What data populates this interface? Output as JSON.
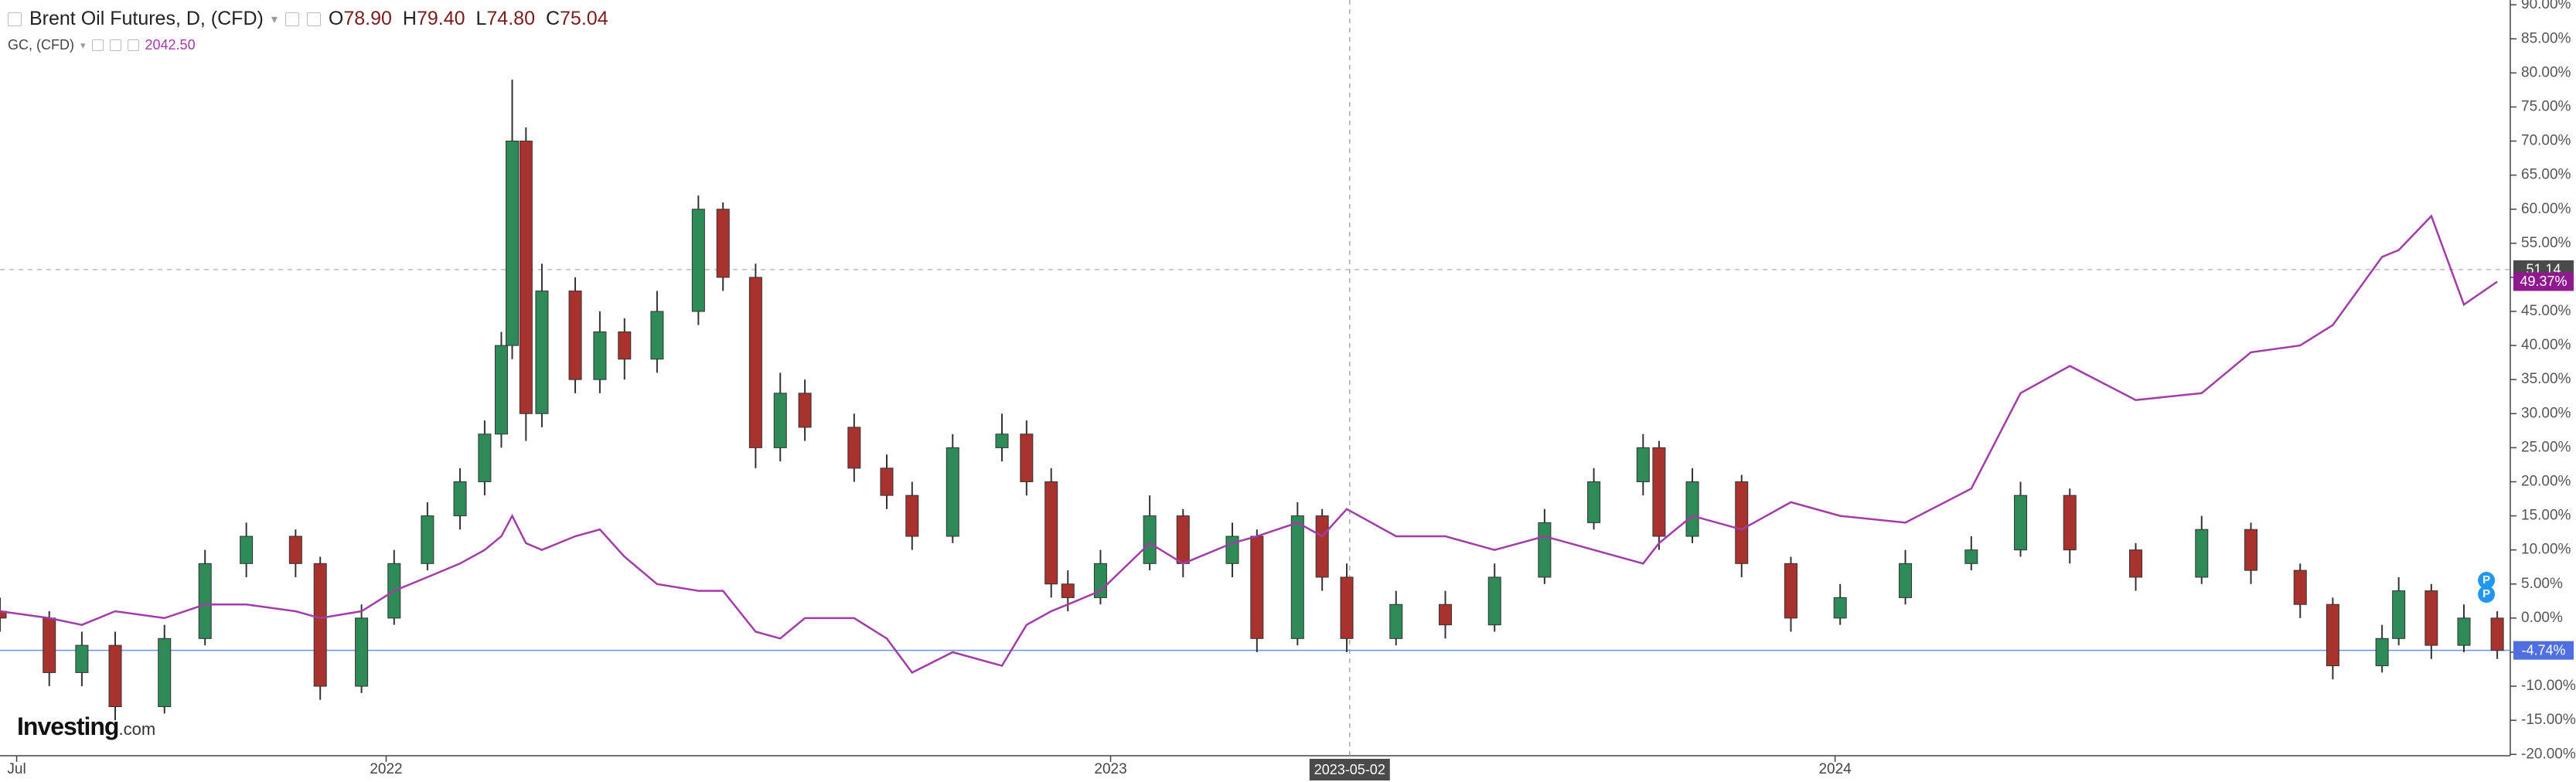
{
  "chart_data": {
    "type": "candlestick",
    "title": "Brent Oil Futures, D, (CFD)",
    "ohlc": [
      {
        "key": "O",
        "value": {
          "value": 78.9,
          "label": "78.90"
        }
      },
      {
        "key": "H",
        "value": {
          "value": 79.4,
          "label": "79.40"
        }
      },
      {
        "key": "L",
        "value": {
          "value": 74.8,
          "label": "74.80"
        }
      },
      {
        "key": "C",
        "value": 75.04
      }
    ],
    "overlay": {
      "name": "GC, (CFD)",
      "value": {
        "value": 2042.5,
        "label": "2042.50"
      }
    },
    "logo": {
      "name": "Investing",
      "suffix": ".com"
    },
    "events": [
      "P",
      "P"
    ],
    "xlim": [
      2021.467,
      2024.932
    ],
    "xticks": [
      {
        "value": 2021.49,
        "label": "Jul"
      },
      2022,
      2023,
      2024
    ],
    "ylim": [
      -20.2,
      90.7
    ],
    "yticks": [
      {
        "value": -20,
        "label": "-20.00%"
      },
      {
        "value": -15,
        "label": "-15.00%"
      },
      {
        "value": -10,
        "label": "-10.00%"
      },
      {
        "value": -5,
        "label": "-5.00%"
      },
      {
        "value": 0,
        "label": "0.00%"
      },
      {
        "value": 5,
        "label": "5.00%"
      },
      {
        "value": 10,
        "label": "10.00%"
      },
      {
        "value": 15,
        "label": "15.00%"
      },
      {
        "value": 20,
        "label": "20.00%"
      },
      {
        "value": 25,
        "label": "25.00%"
      },
      {
        "value": 30,
        "label": "30.00%"
      },
      {
        "value": 35,
        "label": "35.00%"
      },
      {
        "value": 40,
        "label": "40.00%"
      },
      {
        "value": 45,
        "label": "45.00%"
      },
      {
        "value": 50,
        "label": "50.00%"
      },
      {
        "value": 55,
        "label": "55.00%"
      },
      {
        "value": 60,
        "label": "60.00%"
      },
      {
        "value": 65,
        "label": "65.00%"
      },
      {
        "value": 70,
        "label": "70.00%"
      },
      {
        "value": 75,
        "label": "75.00%"
      },
      {
        "value": 80,
        "label": "80.00%"
      },
      {
        "value": 85,
        "label": "85.00%"
      },
      {
        "value": 90,
        "label": "90.00%"
      }
    ],
    "grid": false,
    "crosshair": {
      "x": {
        "value": 2023.33,
        "label": "2023-05-02"
      },
      "y": 51.14
    },
    "x": [
      2021.467,
      2021.535,
      2021.58,
      2021.626,
      2021.694,
      2021.75,
      2021.807,
      2021.875,
      2021.909,
      2021.966,
      2022.011,
      2022.057,
      2022.102,
      2022.136,
      2022.159,
      2022.174,
      2022.193,
      2022.215,
      2022.261,
      2022.295,
      2022.329,
      2022.374,
      2022.431,
      2022.465,
      2022.51,
      2022.544,
      2022.578,
      2022.646,
      2022.691,
      2022.726,
      2022.782,
      2022.85,
      2022.884,
      2022.918,
      2022.941,
      2022.986,
      2023.054,
      2023.1,
      2023.168,
      2023.202,
      2023.258,
      2023.292,
      2023.326,
      2023.394,
      2023.462,
      2023.53,
      2023.599,
      2023.667,
      2023.735,
      2023.757,
      2023.803,
      2023.871,
      2023.939,
      2024.007,
      2024.097,
      2024.188,
      2024.256,
      2024.324,
      2024.415,
      2024.506,
      2024.574,
      2024.642,
      2024.687,
      2024.755,
      2024.778,
      2024.823,
      2024.868,
      2024.914
    ],
    "candles": {
      "up_color": "#2e8b57",
      "down_color": "#a8322d",
      "line_color": "#6f8ff0",
      "open": [
        1,
        0,
        -8,
        -4,
        -13,
        -3,
        8,
        12,
        8,
        -10,
        0,
        8,
        15,
        20,
        27,
        40,
        70,
        30,
        48,
        35,
        42,
        38,
        45,
        60,
        50,
        25,
        33,
        28,
        22,
        18,
        12,
        25,
        27,
        20,
        5,
        3,
        8,
        15,
        8,
        12,
        -3,
        15,
        6,
        -3,
        2,
        -1,
        6,
        14,
        20,
        25,
        12,
        20,
        8,
        0,
        3,
        8,
        10,
        18,
        10,
        6,
        13,
        7,
        2,
        -7,
        -3,
        4,
        -4,
        0
      ],
      "high": [
        3,
        1,
        -2,
        -2,
        -1,
        10,
        14,
        13,
        9,
        2,
        10,
        17,
        22,
        29,
        42,
        79,
        72,
        52,
        50,
        45,
        44,
        48,
        62,
        61,
        52,
        36,
        35,
        30,
        24,
        20,
        27,
        30,
        29,
        22,
        7,
        10,
        18,
        16,
        14,
        13,
        17,
        16,
        8,
        4,
        4,
        8,
        16,
        22,
        27,
        26,
        22,
        21,
        9,
        5,
        10,
        12,
        20,
        19,
        11,
        15,
        14,
        8,
        3,
        -1,
        6,
        5,
        2,
        1
      ],
      "low": [
        -2,
        -10,
        -10,
        -15,
        -14,
        -4,
        6,
        6,
        -12,
        -11,
        -1,
        7,
        13,
        18,
        25,
        38,
        26,
        28,
        33,
        33,
        35,
        36,
        43,
        48,
        22,
        23,
        26,
        20,
        16,
        10,
        11,
        23,
        18,
        3,
        1,
        2,
        7,
        6,
        6,
        -5,
        -4,
        4,
        -5,
        -4,
        -3,
        -2,
        5,
        13,
        18,
        10,
        11,
        6,
        -2,
        -1,
        2,
        7,
        9,
        8,
        4,
        5,
        5,
        0,
        -9,
        -8,
        -4,
        -6,
        -5,
        -6
      ],
      "close": [
        0,
        -8,
        -4,
        -13,
        -3,
        8,
        12,
        8,
        -10,
        0,
        8,
        15,
        20,
        27,
        40,
        70,
        30,
        48,
        35,
        42,
        38,
        45,
        60,
        50,
        25,
        33,
        28,
        22,
        18,
        12,
        25,
        27,
        20,
        5,
        3,
        8,
        15,
        8,
        12,
        -3,
        15,
        6,
        -3,
        2,
        -1,
        6,
        14,
        20,
        25,
        12,
        20,
        8,
        0,
        3,
        8,
        10,
        18,
        10,
        6,
        13,
        7,
        2,
        -7,
        -3,
        4,
        -4,
        0,
        -4.74
      ],
      "last_label": {
        "value": -4.74,
        "label": "-4.74%"
      }
    },
    "line": {
      "color": "#a23ca8",
      "values": [
        1,
        0,
        -1,
        1,
        0,
        2,
        2,
        1,
        0,
        1,
        4,
        6,
        8,
        10,
        12,
        15,
        11,
        10,
        12,
        13,
        9,
        5,
        4,
        4,
        -2,
        -3,
        0,
        0,
        -3,
        -8,
        -5,
        -7,
        -1,
        1,
        2,
        4,
        11,
        8,
        11,
        12,
        14,
        12,
        16,
        12,
        12,
        10,
        12,
        10,
        8,
        11,
        15,
        13,
        17,
        15,
        14,
        19,
        33,
        37,
        32,
        33,
        39,
        40,
        43,
        53,
        54,
        59,
        46,
        49.37
      ],
      "last_label": {
        "value": 49.37,
        "label": "49.37%"
      }
    }
  }
}
